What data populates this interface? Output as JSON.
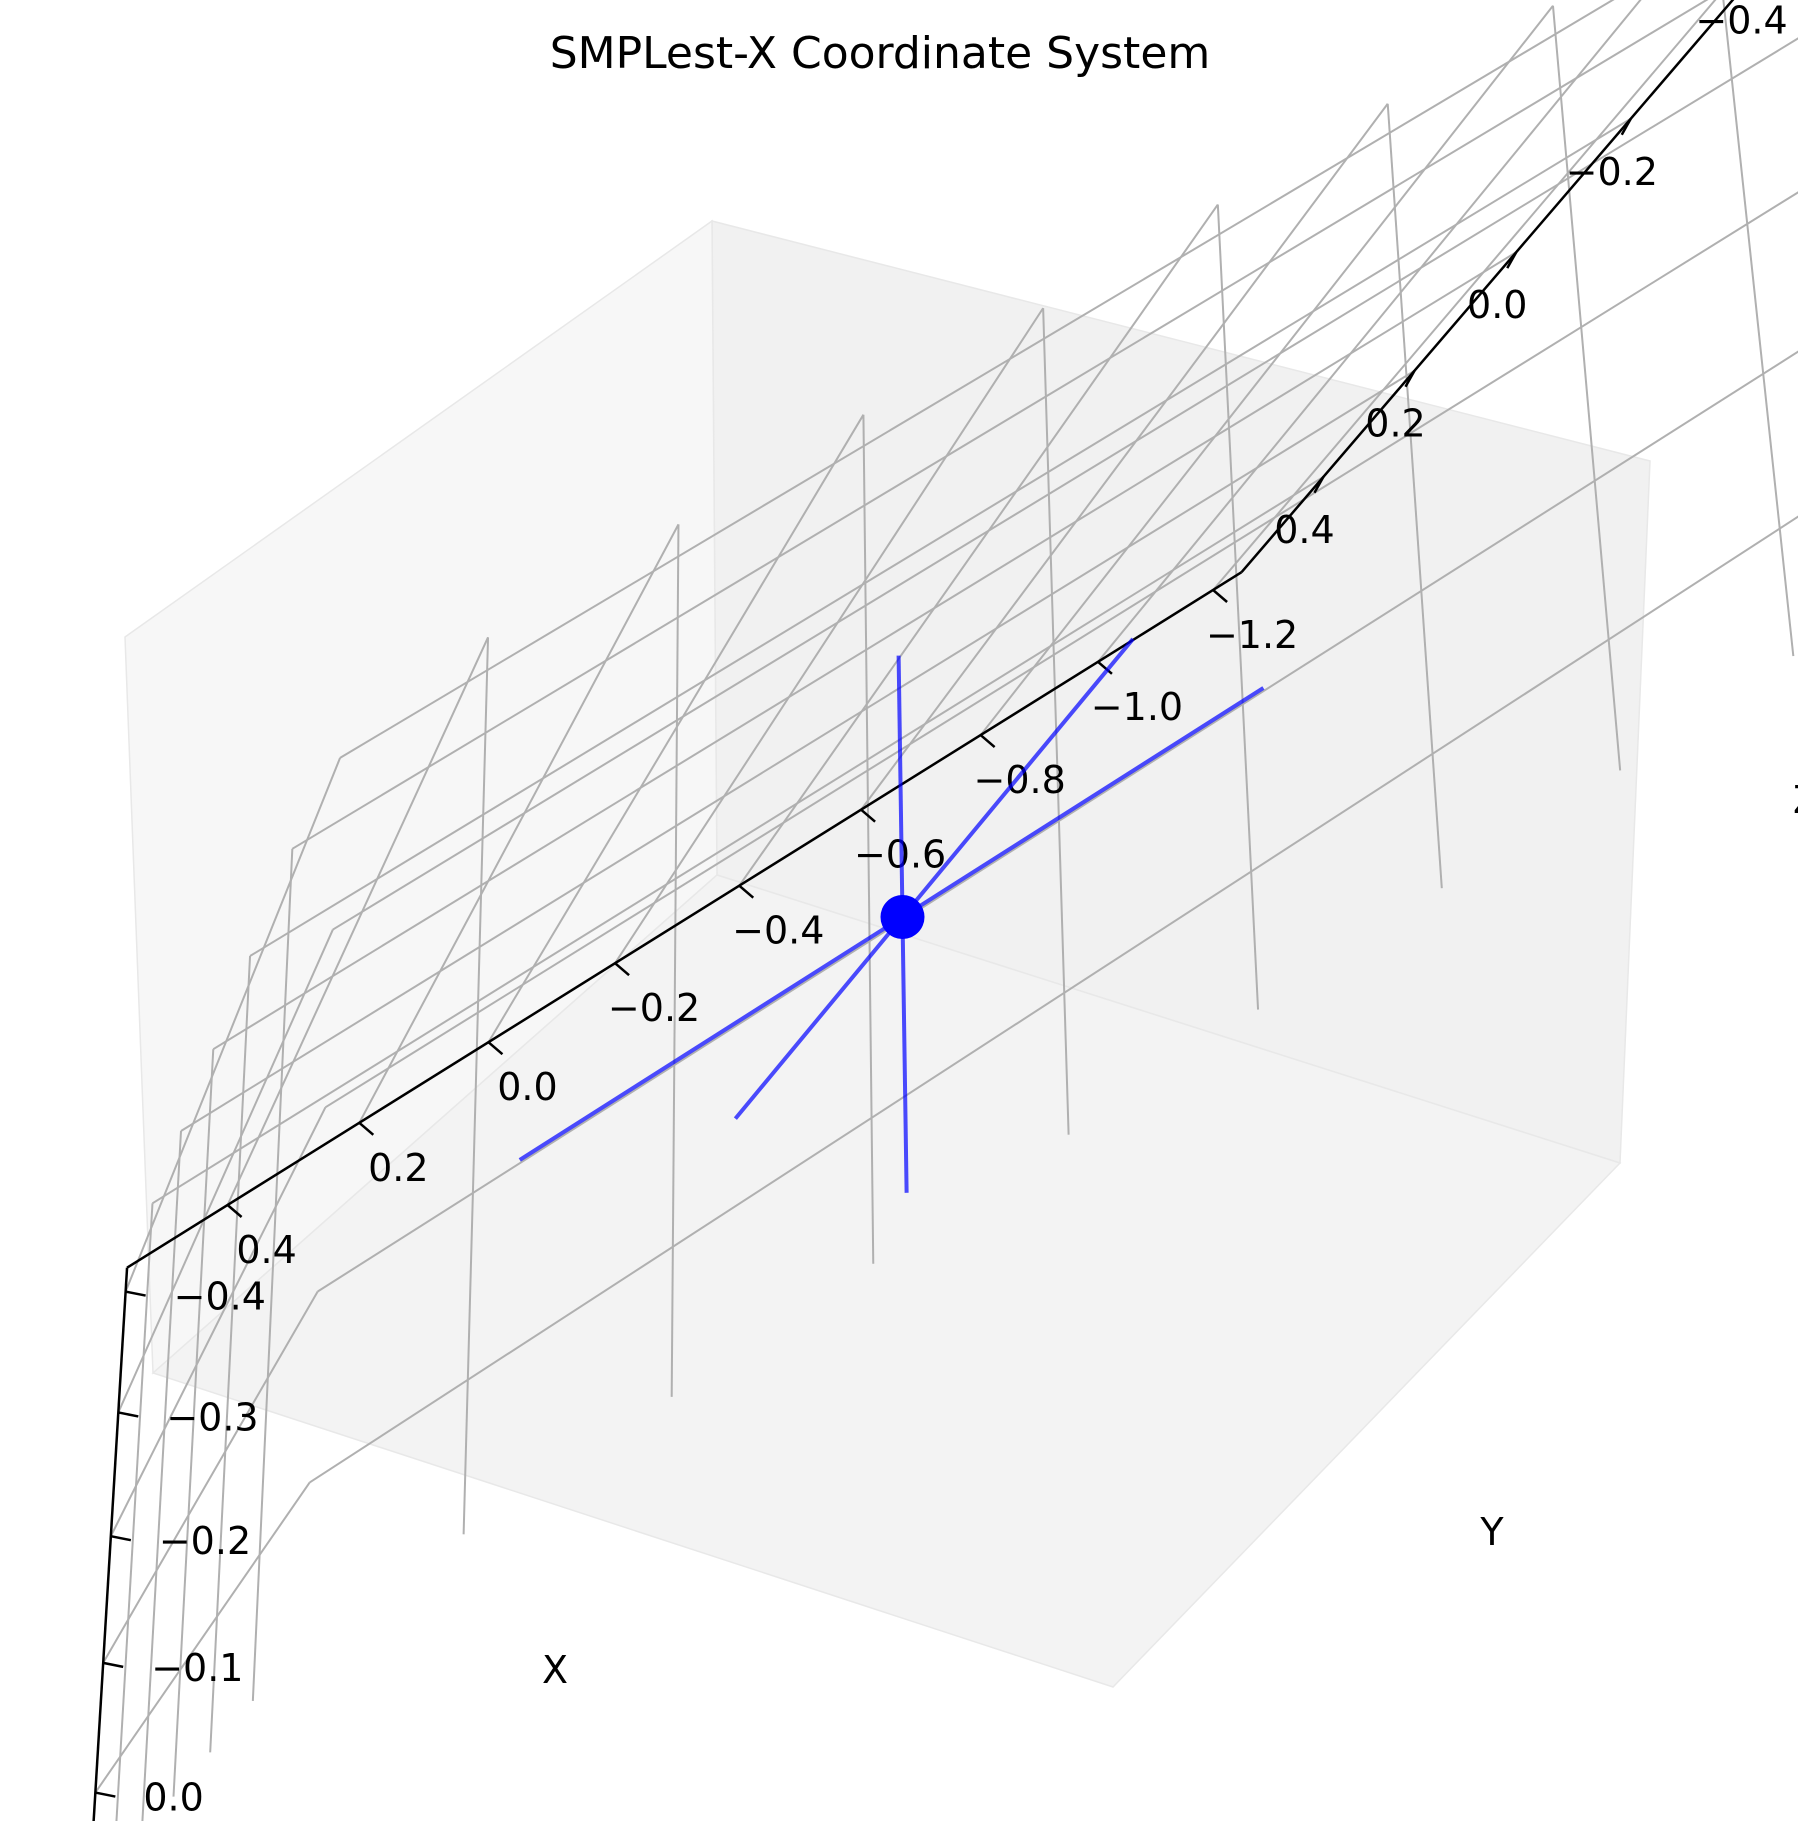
{
  "chart_data": {
    "type": "scatter",
    "projection": "3d",
    "title": "SMPLest-X Coordinate System",
    "xlabel": "X",
    "ylabel": "Y",
    "zlabel": "Z",
    "x_ticks": [
      "−0.4",
      "−0.2",
      "0.0",
      "0.2",
      "0.4"
    ],
    "y_ticks": [
      "−1.2",
      "−1.0",
      "−0.8",
      "−0.6",
      "−0.4",
      "−0.2",
      "0.0",
      "0.2",
      "0.4"
    ],
    "z_ticks": [
      "−0.4",
      "−0.3",
      "−0.2",
      "−0.1",
      "0.0"
    ],
    "xlim": [
      -0.6,
      0.6
    ],
    "ylim": [
      -1.25,
      0.55
    ],
    "zlim": [
      -0.42,
      0.08
    ],
    "grid": true,
    "series": [
      {
        "marker": "point",
        "color": "#0000ff",
        "points": [
          {
            "x": 0.0,
            "y": -0.35,
            "z": -0.2
          }
        ]
      },
      {
        "marker": "axis-lines",
        "color": "#0000ff",
        "segments": [
          {
            "axis": "x",
            "from": {
              "x": -0.5,
              "y": -0.35,
              "z": -0.2
            },
            "to": {
              "x": 0.5,
              "y": -0.35,
              "z": -0.2
            }
          },
          {
            "axis": "y",
            "from": {
              "x": 0.0,
              "y": -0.85,
              "z": -0.2
            },
            "to": {
              "x": 0.0,
              "y": 0.15,
              "z": -0.2
            }
          },
          {
            "axis": "z",
            "from": {
              "x": 0.0,
              "y": -0.35,
              "z": -0.4
            },
            "to": {
              "x": 0.0,
              "y": -0.35,
              "z": 0.0
            }
          }
        ]
      }
    ]
  }
}
